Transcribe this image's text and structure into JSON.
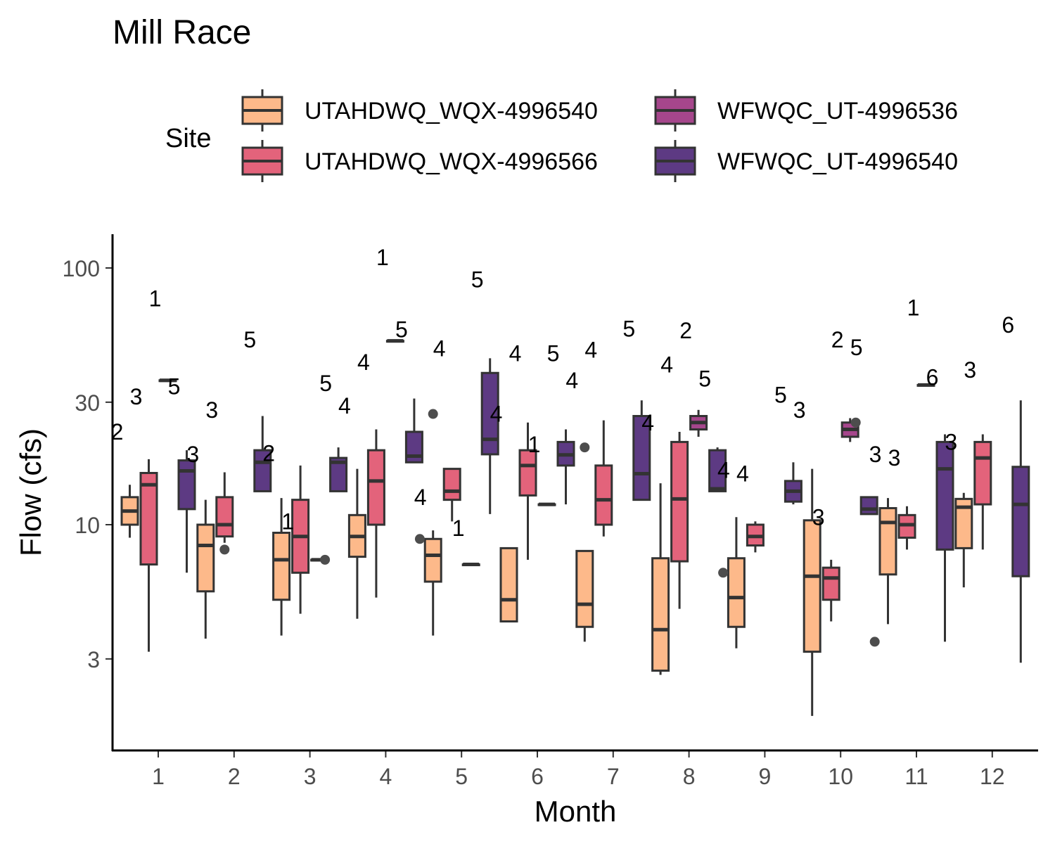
{
  "chart_data": {
    "type": "boxplot",
    "title": "Mill Race",
    "xlabel": "Month",
    "ylabel": "Flow (cfs)",
    "y_scale": "log10",
    "ylim": [
      1.5,
      130
    ],
    "y_ticks": [
      3,
      10,
      30,
      100
    ],
    "y_tick_labels": [
      "3",
      "10",
      "30",
      "100"
    ],
    "categories": [
      "1",
      "2",
      "3",
      "4",
      "5",
      "6",
      "7",
      "8",
      "9",
      "10",
      "11",
      "12"
    ],
    "legend": {
      "title": "Site",
      "placement": "top"
    },
    "series": [
      {
        "name": "UTAHDWQ_WQX-4996540",
        "color": "#FDB98A",
        "boxes": [
          {
            "month": "1",
            "low": 8.9,
            "q1": 10.0,
            "median": 11.3,
            "q3": 12.8,
            "high": 14.3,
            "outliers": [],
            "count_label": "2",
            "count_y": 23.0
          },
          {
            "month": "2",
            "low": 3.6,
            "q1": 5.5,
            "median": 8.3,
            "q3": 10.0,
            "high": 12.5,
            "outliers": [],
            "count_label": "3",
            "count_y": 18.8
          },
          {
            "month": "3",
            "low": 3.7,
            "q1": 5.1,
            "median": 7.3,
            "q3": 9.3,
            "high": 12.7,
            "outliers": [],
            "count_label": "2",
            "count_y": 19.0
          },
          {
            "month": "4",
            "low": 4.3,
            "q1": 7.5,
            "median": 9.0,
            "q3": 10.9,
            "high": 16.5,
            "outliers": [],
            "count_label": "4",
            "count_y": 29.0
          },
          {
            "month": "5",
            "low": 3.7,
            "q1": 6.0,
            "median": 7.6,
            "q3": 8.8,
            "high": 9.5,
            "outliers": [
              27.0
            ],
            "count_label": "4",
            "count_y": 12.8
          },
          {
            "month": "6",
            "low": 4.2,
            "q1": 4.2,
            "median": 5.1,
            "q3": 8.1,
            "high": 8.1,
            "outliers": [],
            "count_label": "4",
            "count_y": 27.0
          },
          {
            "month": "7",
            "low": 3.5,
            "q1": 4.0,
            "median": 4.9,
            "q3": 7.9,
            "high": 7.9,
            "outliers": [
              20.0
            ],
            "count_label": "4",
            "count_y": 36.5
          },
          {
            "month": "8",
            "low": 2.6,
            "q1": 2.7,
            "median": 3.9,
            "q3": 7.4,
            "high": 14.5,
            "outliers": [],
            "count_label": "4",
            "count_y": 25.0
          },
          {
            "month": "9",
            "low": 3.3,
            "q1": 4.0,
            "median": 5.2,
            "q3": 7.4,
            "high": 10.7,
            "outliers": [],
            "count_label": "4",
            "count_y": 16.3
          },
          {
            "month": "10",
            "low": 1.8,
            "q1": 3.2,
            "median": 6.3,
            "q3": 10.4,
            "high": 16.5,
            "outliers": [],
            "count_label": "3",
            "count_y": 28.0
          },
          {
            "month": "11",
            "low": 4.1,
            "q1": 6.4,
            "median": 10.2,
            "q3": 11.6,
            "high": 12.7,
            "outliers": [],
            "count_label": "3",
            "count_y": 18.8
          },
          {
            "month": "12",
            "low": 5.7,
            "q1": 8.1,
            "median": 11.7,
            "q3": 12.6,
            "high": 13.3,
            "outliers": [],
            "count_label": "3",
            "count_y": 21.0
          }
        ]
      },
      {
        "name": "UTAHDWQ_WQX-4996566",
        "color": "#E3637B",
        "boxes": [
          {
            "month": "1",
            "low": 3.2,
            "q1": 7.0,
            "median": 14.3,
            "q3": 15.9,
            "high": 18.0,
            "outliers": [],
            "count_label": "3",
            "count_y": 31.5
          },
          {
            "month": "2",
            "low": 8.5,
            "q1": 9.0,
            "median": 10.0,
            "q3": 12.8,
            "high": 16.0,
            "outliers": [
              8.0
            ],
            "count_label": "3",
            "count_y": 28.0
          },
          {
            "month": "3",
            "low": 4.5,
            "q1": 6.5,
            "median": 9.0,
            "q3": 12.5,
            "high": 17.0,
            "outliers": [],
            "count_label": "1",
            "count_y": 10.3
          },
          {
            "month": "4",
            "low": 5.2,
            "q1": 10.0,
            "median": 14.8,
            "q3": 19.5,
            "high": 23.5,
            "outliers": [],
            "count_label": "4",
            "count_y": 43.0
          },
          {
            "month": "5",
            "low": 10.3,
            "q1": 12.5,
            "median": 13.5,
            "q3": 16.5,
            "high": 16.5,
            "outliers": [],
            "count_label": "4",
            "count_y": 48.5
          },
          {
            "month": "6",
            "low": 7.3,
            "q1": 13.0,
            "median": 17.0,
            "q3": 19.5,
            "high": 25.0,
            "outliers": [],
            "count_label": "4",
            "count_y": 46.5
          },
          {
            "month": "7",
            "low": 9.0,
            "q1": 10.0,
            "median": 12.5,
            "q3": 17.0,
            "high": 25.5,
            "outliers": [],
            "count_label": "4",
            "count_y": 48.0
          },
          {
            "month": "8",
            "low": 4.7,
            "q1": 7.2,
            "median": 12.6,
            "q3": 21.0,
            "high": 23.0,
            "outliers": [],
            "count_label": "4",
            "count_y": 42.0
          },
          {
            "month": "9",
            "low": 7.8,
            "q1": 8.3,
            "median": 9.0,
            "q3": 10.0,
            "high": 10.3,
            "outliers": [],
            "count_label": "4",
            "count_y": 15.8
          },
          {
            "month": "10",
            "low": 4.2,
            "q1": 5.1,
            "median": 6.2,
            "q3": 6.8,
            "high": 7.3,
            "outliers": [],
            "count_label": "3",
            "count_y": 10.7
          },
          {
            "month": "11",
            "low": 8.0,
            "q1": 8.9,
            "median": 10.0,
            "q3": 10.9,
            "high": 11.8,
            "outliers": [],
            "count_label": "3",
            "count_y": 18.2
          },
          {
            "month": "12",
            "low": 8.0,
            "q1": 12.0,
            "median": 18.2,
            "q3": 21.0,
            "high": 22.5,
            "outliers": [],
            "count_label": "3",
            "count_y": 40.0
          }
        ]
      },
      {
        "name": "WFWQC_UT-4996536",
        "color": "#A6468C",
        "boxes": [
          {
            "month": "1",
            "low": 36.5,
            "q1": 36.5,
            "median": 36.5,
            "q3": 36.5,
            "high": 36.5,
            "outliers": [],
            "count_label": "1",
            "count_y": 76.0
          },
          {
            "month": "3",
            "low": 7.3,
            "q1": 7.3,
            "median": 7.3,
            "q3": 7.3,
            "high": 7.3,
            "outliers": [
              7.3
            ],
            "count_label": "",
            "count_y": 0
          },
          {
            "month": "4",
            "low": 52.0,
            "q1": 52.0,
            "median": 52.0,
            "q3": 52.0,
            "high": 52.0,
            "outliers": [],
            "count_label": "1",
            "count_y": 110.0
          },
          {
            "month": "5",
            "low": 7.0,
            "q1": 7.0,
            "median": 7.0,
            "q3": 7.0,
            "high": 7.0,
            "outliers": [],
            "count_label": "1",
            "count_y": 9.7
          },
          {
            "month": "6",
            "low": 12.0,
            "q1": 12.0,
            "median": 12.0,
            "q3": 12.0,
            "high": 12.0,
            "outliers": [],
            "count_label": "1",
            "count_y": 20.5
          },
          {
            "month": "8",
            "low": 22.0,
            "q1": 23.5,
            "median": 25.0,
            "q3": 26.5,
            "high": 28.0,
            "outliers": [],
            "count_label": "2",
            "count_y": 57.0
          },
          {
            "month": "10",
            "low": 21.0,
            "q1": 22.0,
            "median": 23.5,
            "q3": 25.0,
            "high": 26.0,
            "outliers": [
              25.0
            ],
            "count_label": "2",
            "count_y": 52.5
          },
          {
            "month": "11",
            "low": 35.0,
            "q1": 35.0,
            "median": 35.0,
            "q3": 35.0,
            "high": 35.0,
            "outliers": [],
            "count_label": "1",
            "count_y": 70.0
          }
        ]
      },
      {
        "name": "WFWQC_UT-4996540",
        "color": "#5D3A83",
        "boxes": [
          {
            "month": "1",
            "low": 6.5,
            "q1": 11.5,
            "median": 16.2,
            "q3": 17.8,
            "high": 19.5,
            "outliers": [],
            "count_label": "5",
            "count_y": 34.5
          },
          {
            "month": "2",
            "low": 13.5,
            "q1": 13.5,
            "median": 17.5,
            "q3": 19.5,
            "high": 26.5,
            "outliers": [],
            "count_label": "5",
            "count_y": 52.5
          },
          {
            "month": "3",
            "low": 13.5,
            "q1": 13.5,
            "median": 17.5,
            "q3": 18.2,
            "high": 20.0,
            "outliers": [],
            "count_label": "5",
            "count_y": 35.5
          },
          {
            "month": "4",
            "low": 17.5,
            "q1": 17.5,
            "median": 18.5,
            "q3": 23.0,
            "high": 31.0,
            "outliers": [
              8.8
            ],
            "count_label": "5",
            "count_y": 57.5
          },
          {
            "month": "5",
            "low": 11.0,
            "q1": 18.8,
            "median": 21.5,
            "q3": 39.0,
            "high": 44.5,
            "outliers": [],
            "count_label": "5",
            "count_y": 90.0
          },
          {
            "month": "6",
            "low": 12.0,
            "q1": 17.0,
            "median": 18.7,
            "q3": 21.0,
            "high": 23.5,
            "outliers": [],
            "count_label": "5",
            "count_y": 46.5
          },
          {
            "month": "7",
            "low": 12.5,
            "q1": 12.5,
            "median": 15.8,
            "q3": 26.5,
            "high": 30.5,
            "outliers": [],
            "count_label": "5",
            "count_y": 58.0
          },
          {
            "month": "8",
            "low": 13.5,
            "q1": 13.5,
            "median": 13.8,
            "q3": 19.5,
            "high": 20.0,
            "outliers": [
              6.5
            ],
            "count_label": "5",
            "count_y": 37.0
          },
          {
            "month": "9",
            "low": 12.0,
            "q1": 12.3,
            "median": 13.5,
            "q3": 14.8,
            "high": 17.5,
            "outliers": [],
            "count_label": "5",
            "count_y": 32.0
          },
          {
            "month": "10",
            "low": 11.0,
            "q1": 11.0,
            "median": 11.5,
            "q3": 12.8,
            "high": 12.8,
            "outliers": [
              3.5
            ],
            "count_label": "5",
            "count_y": 49.0
          },
          {
            "month": "11",
            "low": 3.5,
            "q1": 8.0,
            "median": 16.5,
            "q3": 21.0,
            "high": 22.5,
            "outliers": [],
            "count_label": "6",
            "count_y": 37.5
          },
          {
            "month": "12",
            "low": 2.9,
            "q1": 6.3,
            "median": 12.0,
            "q3": 16.8,
            "high": 30.5,
            "outliers": [],
            "count_label": "6",
            "count_y": 60.0
          }
        ]
      }
    ]
  }
}
